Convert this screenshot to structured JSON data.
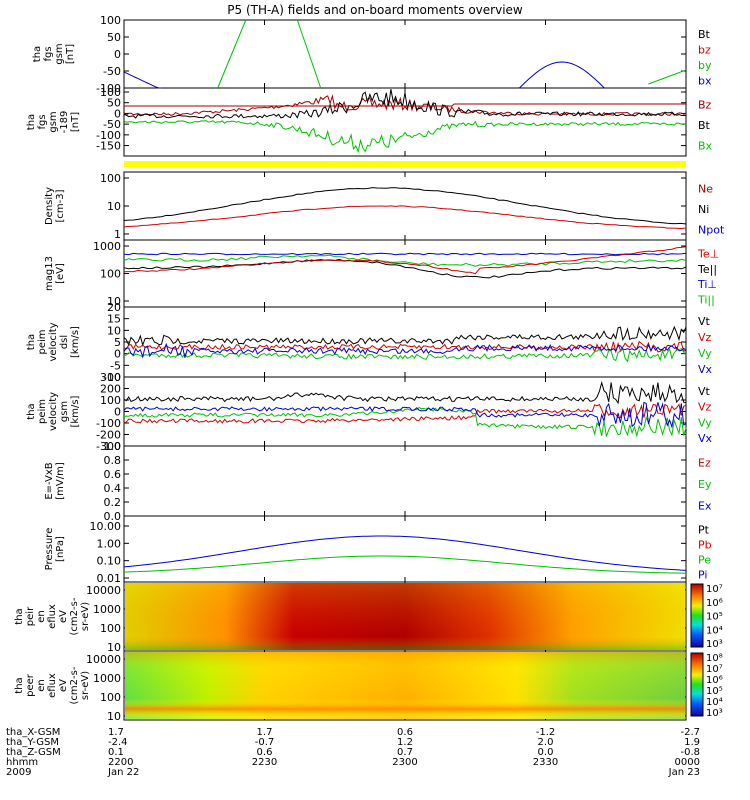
{
  "chart_data": {
    "type": "line",
    "title": "P5 (TH-A) fields and on-board moments overview",
    "panels": [
      {
        "id": "fgs",
        "ylabel": [
          "tha",
          "fgs",
          "gsm",
          "[nT]"
        ],
        "yticks": [
          "100",
          "50",
          "0",
          "-50",
          "-100"
        ],
        "ylim": [
          -100,
          100
        ],
        "legend": [
          {
            "label": "Bt",
            "color": "#000000"
          },
          {
            "label": "bz",
            "color": "#d00000"
          },
          {
            "label": "by",
            "color": "#00c000"
          },
          {
            "label": "bx",
            "color": "#0000d0"
          }
        ]
      },
      {
        "id": "fgs_lo",
        "ylabel": [
          "tha",
          "fgs",
          "gsm",
          "-189",
          "[nT]"
        ],
        "yticks": [
          "100",
          "50",
          "0",
          "-50",
          "-100",
          "-150"
        ],
        "ylim": [
          -185,
          100
        ],
        "legend": [
          {
            "label": "Bz",
            "color": "#a00000"
          },
          {
            "label": "Bt",
            "color": "#000000"
          },
          {
            "label": "Bx",
            "color": "#00c000"
          }
        ]
      },
      {
        "id": "density",
        "ylabel": [
          "Density",
          "[cm-3]"
        ],
        "yticks": [
          "100",
          "10",
          "1"
        ],
        "legend": [
          {
            "label": "Ne",
            "color": "#a00000"
          },
          {
            "label": "Ni",
            "color": "#000000"
          },
          {
            "label": "Npot",
            "color": "#0000d0"
          }
        ]
      },
      {
        "id": "temp",
        "ylabel": [
          "mag13",
          "[eV]"
        ],
        "yticks": [
          "1000",
          "100",
          "10"
        ],
        "legend": [
          {
            "label": "Te⊥",
            "color": "#d00000"
          },
          {
            "label": "Te||",
            "color": "#000000"
          },
          {
            "label": "Ti⊥",
            "color": "#0000d0"
          },
          {
            "label": "Ti||",
            "color": "#00c000"
          }
        ]
      },
      {
        "id": "vel1",
        "ylabel": [
          "tha",
          "peim",
          "velocity",
          "dsl",
          "[km/s]"
        ],
        "yticks": [
          "20",
          "15",
          "10",
          "5",
          "0",
          "-5",
          "-10"
        ],
        "legend": [
          {
            "label": "Vt",
            "color": "#000000"
          },
          {
            "label": "Vz",
            "color": "#d00000"
          },
          {
            "label": "Vy",
            "color": "#00c000"
          },
          {
            "label": "Vx",
            "color": "#0000d0"
          }
        ]
      },
      {
        "id": "vel2",
        "ylabel": [
          "tha",
          "peim",
          "velocity",
          "gsm",
          "[km/s]"
        ],
        "yticks": [
          "300",
          "200",
          "100",
          "0",
          "-100",
          "-200",
          "-300"
        ],
        "legend": [
          {
            "label": "Vt",
            "color": "#000000"
          },
          {
            "label": "Vz",
            "color": "#d00000"
          },
          {
            "label": "Vy",
            "color": "#00c000"
          },
          {
            "label": "Vx",
            "color": "#0000d0"
          }
        ]
      },
      {
        "id": "efield",
        "ylabel": [
          "E=-VxB",
          "[mV/m]"
        ],
        "yticks": [
          "1.0",
          "0.8",
          "0.6",
          "0.4",
          "0.2",
          "0.0"
        ],
        "legend": [
          {
            "label": "Ez",
            "color": "#d00000"
          },
          {
            "label": "Ey",
            "color": "#00c000"
          },
          {
            "label": "Ex",
            "color": "#0000d0"
          }
        ]
      },
      {
        "id": "pressure",
        "ylabel": [
          "Pressure",
          "[nPa]"
        ],
        "yticks": [
          "10.00",
          "1.00",
          "0.10",
          "0.01"
        ],
        "legend": [
          {
            "label": "Pt",
            "color": "#000000"
          },
          {
            "label": "Pb",
            "color": "#d00000"
          },
          {
            "label": "Pe",
            "color": "#00c000"
          },
          {
            "label": "Pi",
            "color": "#0000d0"
          }
        ]
      },
      {
        "id": "ion_spec",
        "ylabel": [
          "tha",
          "peir",
          "en",
          "eflux",
          "eV",
          "(cm2-s-",
          "sr-eV)"
        ],
        "yticks": [
          "10000",
          "1000",
          "100",
          "10"
        ],
        "colorbar_ticks": [
          "10⁷",
          "10⁶",
          "10⁵",
          "10⁴",
          "10³"
        ]
      },
      {
        "id": "elec_spec",
        "ylabel": [
          "tha",
          "peer",
          "en",
          "eflux",
          "eV",
          "(cm2-s-",
          "sr-eV)"
        ],
        "yticks": [
          "10000",
          "1000",
          "100",
          "10"
        ],
        "colorbar_ticks": [
          "10⁸",
          "10⁷",
          "10⁶",
          "10⁵",
          "10⁴",
          "10³"
        ]
      }
    ],
    "x_axis": {
      "row_labels": [
        "tha_X-GSM",
        "tha_Y-GSM",
        "tha_Z-GSM",
        "hhmm",
        "2009"
      ],
      "columns": [
        {
          "x_minutes": 0,
          "values": [
            "1.7",
            "-2.4",
            "0.1",
            "2200",
            "Jan 22"
          ]
        },
        {
          "x_minutes": 30,
          "values": [
            "1.7",
            "-0.7",
            "0.6",
            "2230",
            ""
          ]
        },
        {
          "x_minutes": 60,
          "values": [
            "0.6",
            "1.2",
            "0.7",
            "2300",
            ""
          ]
        },
        {
          "x_minutes": 90,
          "values": [
            "-1.2",
            "2.0",
            "0.0",
            "2330",
            ""
          ]
        },
        {
          "x_minutes": 120,
          "values": [
            "-2.7",
            "1.9",
            "-0.8",
            "0000",
            "Jan 23"
          ]
        }
      ]
    }
  }
}
